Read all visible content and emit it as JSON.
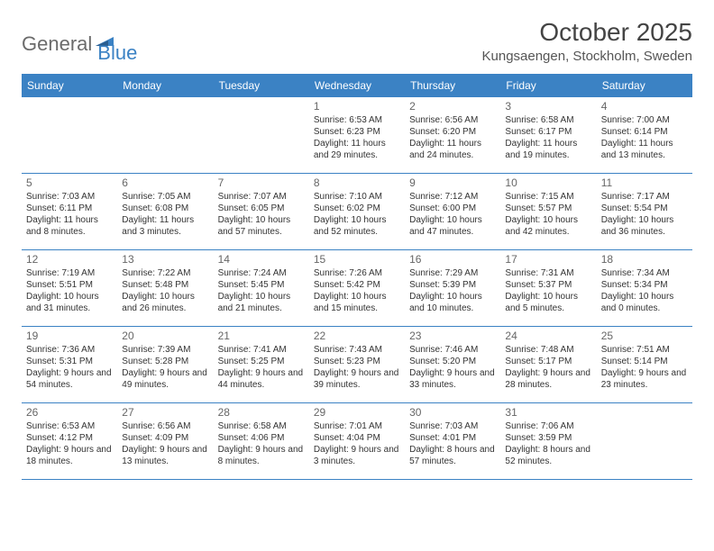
{
  "logo": {
    "text1": "General",
    "text2": "Blue"
  },
  "title": "October 2025",
  "location": "Kungsaengen, Stockholm, Sweden",
  "colors": {
    "header_bg": "#3b82c4",
    "header_text": "#ffffff",
    "row_divider": "#3b82c4",
    "page_bg": "#ffffff",
    "body_text": "#333333",
    "daynum_text": "#666666",
    "logo_gray": "#6b6b6b",
    "logo_blue": "#3b82c4"
  },
  "typography": {
    "title_fontsize": 28,
    "location_fontsize": 15,
    "header_fontsize": 12,
    "daynum_fontsize": 12,
    "cell_fontsize": 10
  },
  "layout": {
    "columns": 7,
    "rows": 5,
    "cell_min_height": 84
  },
  "day_headers": [
    "Sunday",
    "Monday",
    "Tuesday",
    "Wednesday",
    "Thursday",
    "Friday",
    "Saturday"
  ],
  "weeks": [
    [
      null,
      null,
      null,
      {
        "num": "1",
        "sunrise": "6:53 AM",
        "sunset": "6:23 PM",
        "daylight": "11 hours and 29 minutes."
      },
      {
        "num": "2",
        "sunrise": "6:56 AM",
        "sunset": "6:20 PM",
        "daylight": "11 hours and 24 minutes."
      },
      {
        "num": "3",
        "sunrise": "6:58 AM",
        "sunset": "6:17 PM",
        "daylight": "11 hours and 19 minutes."
      },
      {
        "num": "4",
        "sunrise": "7:00 AM",
        "sunset": "6:14 PM",
        "daylight": "11 hours and 13 minutes."
      }
    ],
    [
      {
        "num": "5",
        "sunrise": "7:03 AM",
        "sunset": "6:11 PM",
        "daylight": "11 hours and 8 minutes."
      },
      {
        "num": "6",
        "sunrise": "7:05 AM",
        "sunset": "6:08 PM",
        "daylight": "11 hours and 3 minutes."
      },
      {
        "num": "7",
        "sunrise": "7:07 AM",
        "sunset": "6:05 PM",
        "daylight": "10 hours and 57 minutes."
      },
      {
        "num": "8",
        "sunrise": "7:10 AM",
        "sunset": "6:02 PM",
        "daylight": "10 hours and 52 minutes."
      },
      {
        "num": "9",
        "sunrise": "7:12 AM",
        "sunset": "6:00 PM",
        "daylight": "10 hours and 47 minutes."
      },
      {
        "num": "10",
        "sunrise": "7:15 AM",
        "sunset": "5:57 PM",
        "daylight": "10 hours and 42 minutes."
      },
      {
        "num": "11",
        "sunrise": "7:17 AM",
        "sunset": "5:54 PM",
        "daylight": "10 hours and 36 minutes."
      }
    ],
    [
      {
        "num": "12",
        "sunrise": "7:19 AM",
        "sunset": "5:51 PM",
        "daylight": "10 hours and 31 minutes."
      },
      {
        "num": "13",
        "sunrise": "7:22 AM",
        "sunset": "5:48 PM",
        "daylight": "10 hours and 26 minutes."
      },
      {
        "num": "14",
        "sunrise": "7:24 AM",
        "sunset": "5:45 PM",
        "daylight": "10 hours and 21 minutes."
      },
      {
        "num": "15",
        "sunrise": "7:26 AM",
        "sunset": "5:42 PM",
        "daylight": "10 hours and 15 minutes."
      },
      {
        "num": "16",
        "sunrise": "7:29 AM",
        "sunset": "5:39 PM",
        "daylight": "10 hours and 10 minutes."
      },
      {
        "num": "17",
        "sunrise": "7:31 AM",
        "sunset": "5:37 PM",
        "daylight": "10 hours and 5 minutes."
      },
      {
        "num": "18",
        "sunrise": "7:34 AM",
        "sunset": "5:34 PM",
        "daylight": "10 hours and 0 minutes."
      }
    ],
    [
      {
        "num": "19",
        "sunrise": "7:36 AM",
        "sunset": "5:31 PM",
        "daylight": "9 hours and 54 minutes."
      },
      {
        "num": "20",
        "sunrise": "7:39 AM",
        "sunset": "5:28 PM",
        "daylight": "9 hours and 49 minutes."
      },
      {
        "num": "21",
        "sunrise": "7:41 AM",
        "sunset": "5:25 PM",
        "daylight": "9 hours and 44 minutes."
      },
      {
        "num": "22",
        "sunrise": "7:43 AM",
        "sunset": "5:23 PM",
        "daylight": "9 hours and 39 minutes."
      },
      {
        "num": "23",
        "sunrise": "7:46 AM",
        "sunset": "5:20 PM",
        "daylight": "9 hours and 33 minutes."
      },
      {
        "num": "24",
        "sunrise": "7:48 AM",
        "sunset": "5:17 PM",
        "daylight": "9 hours and 28 minutes."
      },
      {
        "num": "25",
        "sunrise": "7:51 AM",
        "sunset": "5:14 PM",
        "daylight": "9 hours and 23 minutes."
      }
    ],
    [
      {
        "num": "26",
        "sunrise": "6:53 AM",
        "sunset": "4:12 PM",
        "daylight": "9 hours and 18 minutes."
      },
      {
        "num": "27",
        "sunrise": "6:56 AM",
        "sunset": "4:09 PM",
        "daylight": "9 hours and 13 minutes."
      },
      {
        "num": "28",
        "sunrise": "6:58 AM",
        "sunset": "4:06 PM",
        "daylight": "9 hours and 8 minutes."
      },
      {
        "num": "29",
        "sunrise": "7:01 AM",
        "sunset": "4:04 PM",
        "daylight": "9 hours and 3 minutes."
      },
      {
        "num": "30",
        "sunrise": "7:03 AM",
        "sunset": "4:01 PM",
        "daylight": "8 hours and 57 minutes."
      },
      {
        "num": "31",
        "sunrise": "7:06 AM",
        "sunset": "3:59 PM",
        "daylight": "8 hours and 52 minutes."
      },
      null
    ]
  ],
  "labels": {
    "sunrise": "Sunrise:",
    "sunset": "Sunset:",
    "daylight": "Daylight:"
  }
}
